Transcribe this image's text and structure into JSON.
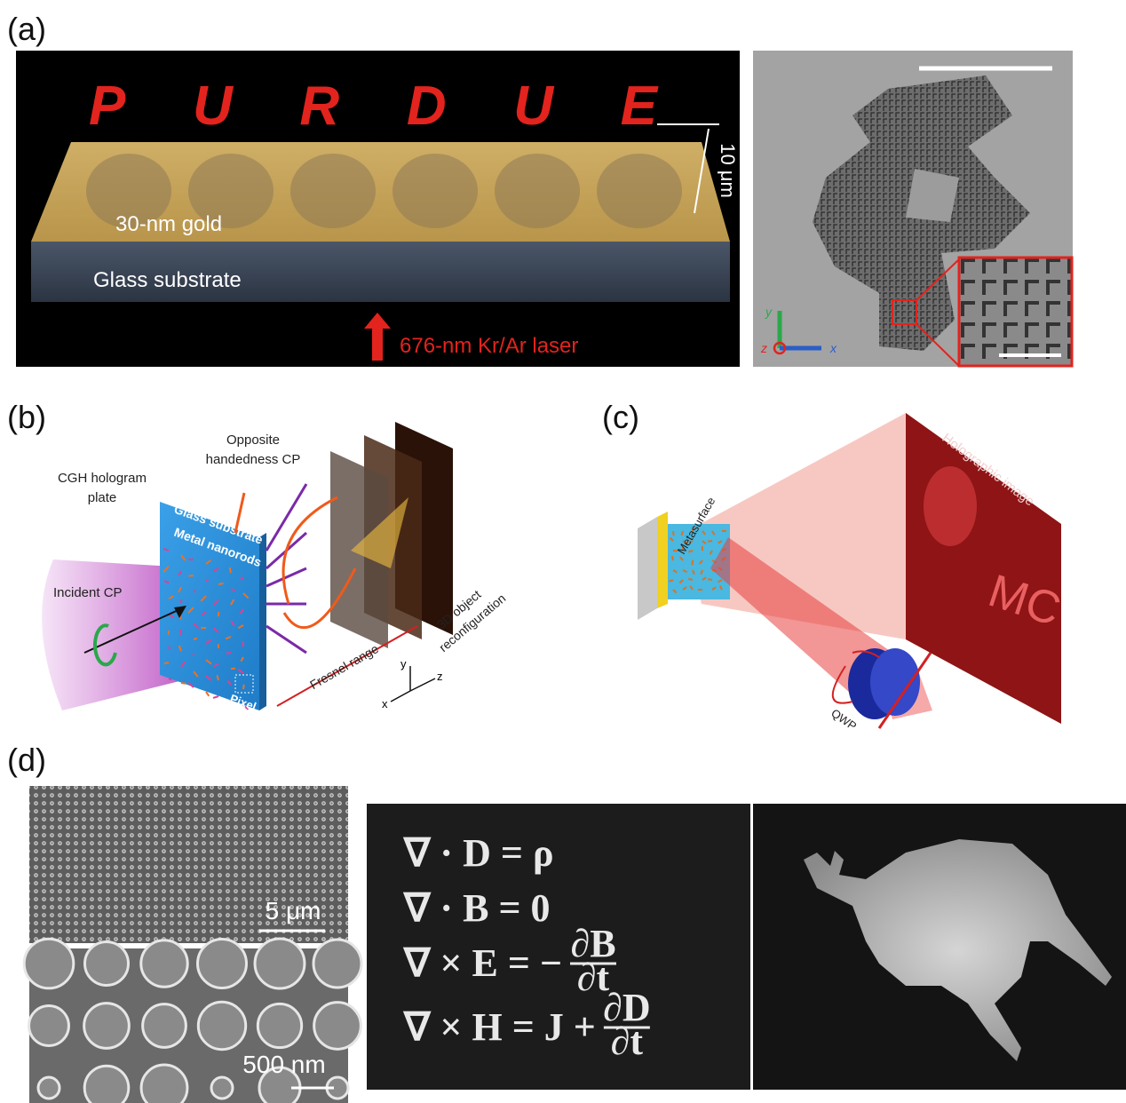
{
  "panel_a": {
    "label": "(a)",
    "hologram_text": "PURDUE",
    "scale": "10 μm",
    "gold_layer": "30-nm gold",
    "substrate": "Glass substrate",
    "laser": "676-nm Kr/Ar laser",
    "axes": {
      "y": "y",
      "z": "z",
      "x": "x"
    }
  },
  "panel_b": {
    "label": "(b)",
    "opposite": [
      "Opposite",
      "handedness CP"
    ],
    "plate": [
      "CGH hologram",
      "plate"
    ],
    "glass": "Glass substrate",
    "nanorods": "Metal nanorods",
    "incident": "Incident CP",
    "pixel": "Pixel",
    "fresnel": "Fresnel range",
    "object": [
      "3D object",
      "reconfiguration"
    ],
    "axes": {
      "x": "x",
      "y": "y",
      "z": "z"
    }
  },
  "panel_c": {
    "label": "(c)",
    "image": "Holographic image",
    "metasurface": "Metasurface",
    "qwp": "QWP",
    "hologram_text": "MC"
  },
  "panel_d": {
    "label": "(d)",
    "scale_top": "5 μm",
    "scale_bottom": "500 nm",
    "equations": [
      {
        "text": "∇ · D = ρ"
      },
      {
        "text": "∇ · B = 0"
      },
      {
        "text": "∇ × E = −",
        "num": "∂B",
        "den": "∂t"
      },
      {
        "text": "∇ × H = J +",
        "num": "∂D",
        "den": "∂t"
      }
    ]
  }
}
